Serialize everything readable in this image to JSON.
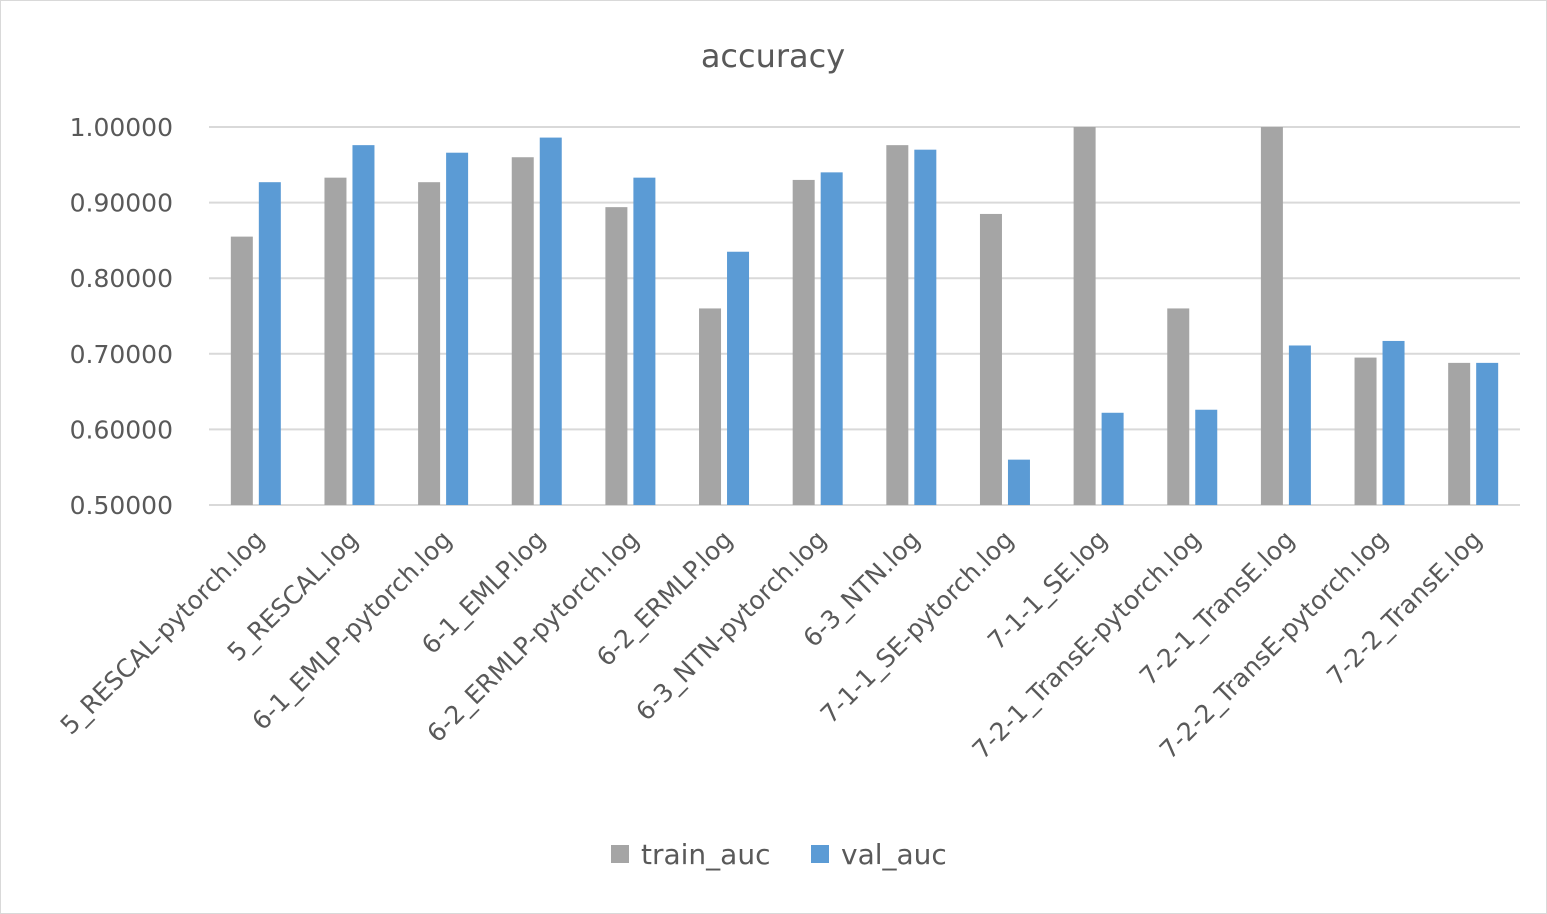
{
  "chart_data": {
    "type": "bar",
    "title": "accuracy",
    "xlabel": "",
    "ylabel": "",
    "ylim": [
      0.5,
      1.0
    ],
    "yticks": [
      "0.50000",
      "0.60000",
      "0.70000",
      "0.80000",
      "0.90000",
      "1.00000"
    ],
    "grid": true,
    "legend_position": "bottom",
    "categories": [
      "5_RESCAL-pytorch.log",
      "5_RESCAL.log",
      "6-1_EMLP-pytorch.log",
      "6-1_EMLP.log",
      "6-2_ERMLP-pytorch.log",
      "6-2_ERMLP.log",
      "6-3_NTN-pytorch.log",
      "6-3_NTN.log",
      "7-1-1_SE-pytorch.log",
      "7-1-1_SE.log",
      "7-2-1_TransE-pytorch.log",
      "7-2-1_TransE.log",
      "7-2-2_TransE-pytorch.log",
      "7-2-2_TransE.log"
    ],
    "series": [
      {
        "name": "train_auc",
        "color": "#a5a5a5",
        "values": [
          0.855,
          0.933,
          0.927,
          0.96,
          0.894,
          0.76,
          0.93,
          0.976,
          0.885,
          1.0,
          0.76,
          1.0,
          0.695,
          0.688
        ]
      },
      {
        "name": "val_auc",
        "color": "#5b9bd5",
        "values": [
          0.927,
          0.976,
          0.966,
          0.986,
          0.933,
          0.835,
          0.94,
          0.97,
          0.56,
          0.622,
          0.626,
          0.711,
          0.717,
          0.688
        ]
      }
    ]
  },
  "colors": {
    "grid": "#d9d9d9",
    "axis": "#d9d9d9",
    "text": "#595959"
  }
}
